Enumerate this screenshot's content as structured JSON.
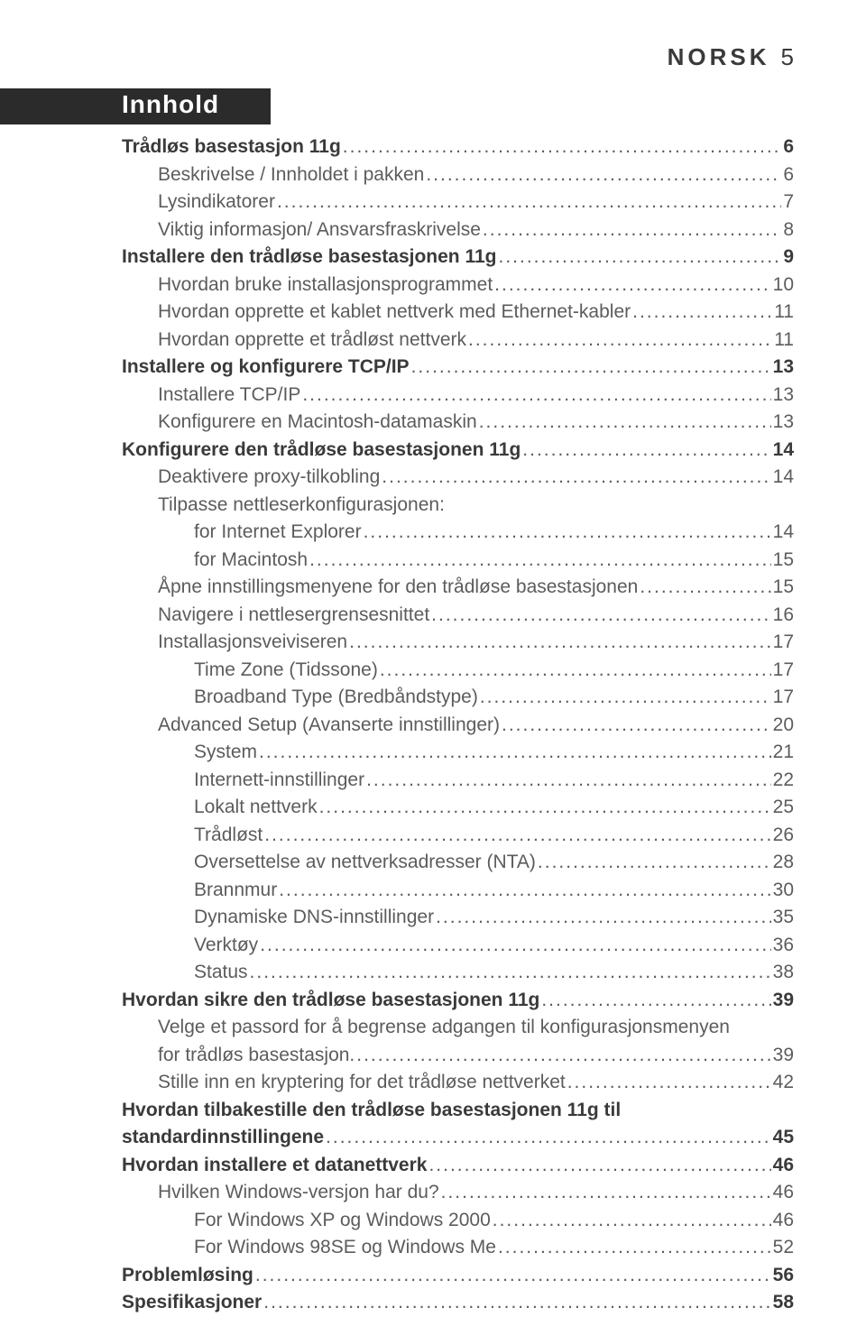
{
  "header": {
    "language": "NORSK",
    "page_num": "5"
  },
  "section_title": "Innhold",
  "toc": [
    {
      "label": "Trådløs basestasjon 11g",
      "page": "6",
      "bold": true,
      "indent": 0
    },
    {
      "label": "Beskrivelse / Innholdet i pakken",
      "page": "6",
      "bold": false,
      "indent": 1
    },
    {
      "label": "Lysindikatorer",
      "page": "7",
      "bold": false,
      "indent": 1
    },
    {
      "label": "Viktig informasjon/ Ansvarsfraskrivelse",
      "page": "8",
      "bold": false,
      "indent": 1
    },
    {
      "label": "Installere den trådløse basestasjonen 11g",
      "page": "9",
      "bold": true,
      "indent": 0
    },
    {
      "label": "Hvordan bruke installasjonsprogrammet",
      "page": "10",
      "bold": false,
      "indent": 1
    },
    {
      "label": "Hvordan opprette et kablet nettverk med Ethernet-kabler",
      "page": "11",
      "bold": false,
      "indent": 1
    },
    {
      "label": "Hvordan opprette et trådløst nettverk",
      "page": "11",
      "bold": false,
      "indent": 1
    },
    {
      "label": "Installere og konfigurere TCP/IP",
      "page": "13",
      "bold": true,
      "indent": 0
    },
    {
      "label": "Installere TCP/IP",
      "page": "13",
      "bold": false,
      "indent": 1
    },
    {
      "label": "Konfigurere en Macintosh-datamaskin",
      "page": "13",
      "bold": false,
      "indent": 1
    },
    {
      "label": "Konfigurere den trådløse basestasjonen 11g",
      "page": "14",
      "bold": true,
      "indent": 0
    },
    {
      "label": "Deaktivere proxy-tilkobling",
      "page": "14",
      "bold": false,
      "indent": 1
    },
    {
      "label": "Tilpasse nettleserkonfigurasjonen:",
      "page": "",
      "bold": false,
      "indent": 1,
      "nodots": true
    },
    {
      "label": "for Internet Explorer",
      "page": "14",
      "bold": false,
      "indent": 2
    },
    {
      "label": "for Macintosh",
      "page": "15",
      "bold": false,
      "indent": 2
    },
    {
      "label": "Åpne innstillingsmenyene for den trådløse basestasjonen",
      "page": "15",
      "bold": false,
      "indent": 1
    },
    {
      "label": "Navigere i nettlesergrensesnittet",
      "page": "16",
      "bold": false,
      "indent": 1
    },
    {
      "label": "Installasjonsveiviseren",
      "page": "17",
      "bold": false,
      "indent": 1
    },
    {
      "label": "Time Zone (Tidssone)",
      "page": "17",
      "bold": false,
      "indent": 2
    },
    {
      "label": "Broadband Type (Bredbåndstype)",
      "page": "17",
      "bold": false,
      "indent": 2
    },
    {
      "label": "Advanced Setup (Avanserte innstillinger)",
      "page": "20",
      "bold": false,
      "indent": 1
    },
    {
      "label": "System",
      "page": "21",
      "bold": false,
      "indent": 2
    },
    {
      "label": "Internett-innstillinger",
      "page": "22",
      "bold": false,
      "indent": 2
    },
    {
      "label": "Lokalt nettverk",
      "page": "25",
      "bold": false,
      "indent": 2
    },
    {
      "label": "Trådløst",
      "page": "26",
      "bold": false,
      "indent": 2
    },
    {
      "label": "Oversettelse av nettverksadresser (NTA)",
      "page": "28",
      "bold": false,
      "indent": 2
    },
    {
      "label": "Brannmur",
      "page": "30",
      "bold": false,
      "indent": 2
    },
    {
      "label": "Dynamiske DNS-innstillinger",
      "page": "35",
      "bold": false,
      "indent": 2
    },
    {
      "label": "Verktøy",
      "page": "36",
      "bold": false,
      "indent": 2
    },
    {
      "label": "Status",
      "page": "38",
      "bold": false,
      "indent": 2
    },
    {
      "label": "Hvordan sikre den trådløse basestasjonen 11g",
      "page": "39",
      "bold": true,
      "indent": 0
    },
    {
      "label": "Velge et passord for å begrense adgangen til konfigurasjonsmenyen",
      "page": "",
      "bold": false,
      "indent": 1,
      "nodots": true
    },
    {
      "label": "for trådløs basestasjon.",
      "page": "39",
      "bold": false,
      "indent": 1
    },
    {
      "label": "Stille inn en kryptering for det trådløse nettverket",
      "page": "42",
      "bold": false,
      "indent": 1
    },
    {
      "label": "Hvordan tilbakestille den trådløse basestasjonen 11g til",
      "page": "",
      "bold": true,
      "indent": 0,
      "nodots": true
    },
    {
      "label": "standardinnstillingene",
      "page": "45",
      "bold": true,
      "indent": 0
    },
    {
      "label": "Hvordan installere et datanettverk",
      "page": "46",
      "bold": true,
      "indent": 0
    },
    {
      "label": "Hvilken Windows-versjon har du?",
      "page": "46",
      "bold": false,
      "indent": 1
    },
    {
      "label": "For Windows XP og Windows 2000",
      "page": "46",
      "bold": false,
      "indent": 2
    },
    {
      "label": "For Windows 98SE og Windows Me",
      "page": "52",
      "bold": false,
      "indent": 2
    },
    {
      "label": "Problemløsing",
      "page": "56",
      "bold": true,
      "indent": 0
    },
    {
      "label": "Spesifikasjoner",
      "page": "58",
      "bold": true,
      "indent": 0
    }
  ]
}
